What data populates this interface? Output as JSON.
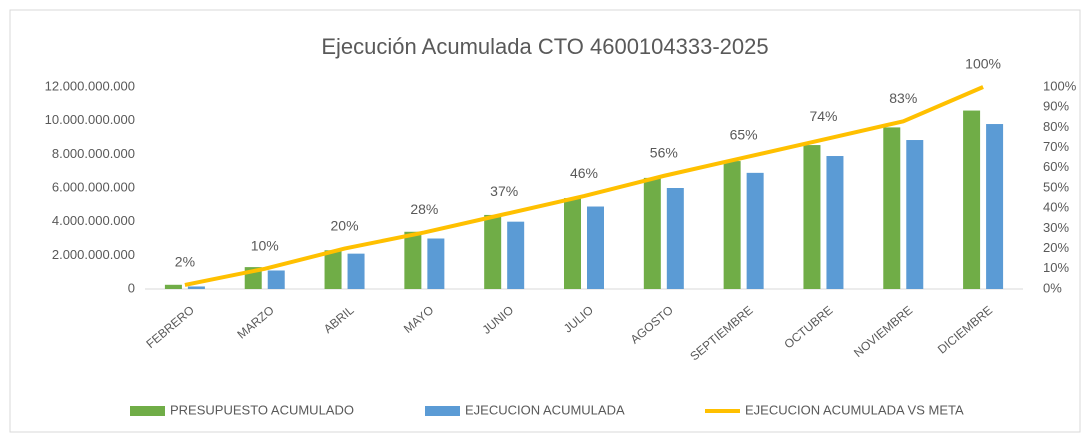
{
  "chart_data": {
    "type": "bar",
    "title": "Ejecución Acumulada CTO 4600104333-2025",
    "categories": [
      "FEBRERO",
      "MARZO",
      "ABRIL",
      "MAYO",
      "JUNIO",
      "JULIO",
      "AGOSTO",
      "SEPTIEMBRE",
      "OCTUBRE",
      "NOVIEMBRE",
      "DICIEMBRE"
    ],
    "series": [
      {
        "name": "PRESUPUESTO ACUMULADO",
        "color": "#70ad47",
        "type": "bar",
        "values": [
          250000000,
          1300000000,
          2300000000,
          3400000000,
          4400000000,
          5400000000,
          6600000000,
          7600000000,
          8550000000,
          9600000000,
          10600000000
        ]
      },
      {
        "name": "EJECUCION ACUMULADA",
        "color": "#5b9bd5",
        "type": "bar",
        "values": [
          150000000,
          1100000000,
          2100000000,
          3000000000,
          4000000000,
          4900000000,
          6000000000,
          6900000000,
          7900000000,
          8850000000,
          9800000000
        ]
      },
      {
        "name": "EJECUCION ACUMULADA VS META",
        "color": "#ffc000",
        "type": "line",
        "axis": "y2",
        "values": [
          2,
          10,
          20,
          28,
          37,
          46,
          56,
          65,
          74,
          83,
          100
        ],
        "value_labels": [
          "2%",
          "10%",
          "20%",
          "28%",
          "37%",
          "46%",
          "56%",
          "65%",
          "74%",
          "83%",
          "100%"
        ]
      }
    ],
    "ylim": [
      0,
      12000000000
    ],
    "yticks": [
      0,
      {
        "value": 2000000000,
        "label": "2.000.000.000"
      },
      {
        "value": 4000000000,
        "label": "4.000.000.000"
      },
      {
        "value": 6000000000,
        "label": "6.000.000.000"
      },
      {
        "value": 8000000000,
        "label": "8.000.000.000"
      },
      {
        "value": 10000000000,
        "label": "10.000.000.000"
      },
      {
        "value": 12000000000,
        "label": "12.000.000.000"
      }
    ],
    "y2lim": [
      0,
      100
    ],
    "y2ticks": [
      {
        "value": 0,
        "label": "0%"
      },
      {
        "value": 10,
        "label": "10%"
      },
      {
        "value": 20,
        "label": "20%"
      },
      {
        "value": 30,
        "label": "30%"
      },
      {
        "value": 40,
        "label": "40%"
      },
      {
        "value": 50,
        "label": "50%"
      },
      {
        "value": 60,
        "label": "60%"
      },
      {
        "value": 70,
        "label": "70%"
      },
      {
        "value": 80,
        "label": "80%"
      },
      {
        "value": 90,
        "label": "90%"
      },
      {
        "value": 100,
        "label": "100%"
      }
    ],
    "legend": "bottom",
    "grid": false
  }
}
